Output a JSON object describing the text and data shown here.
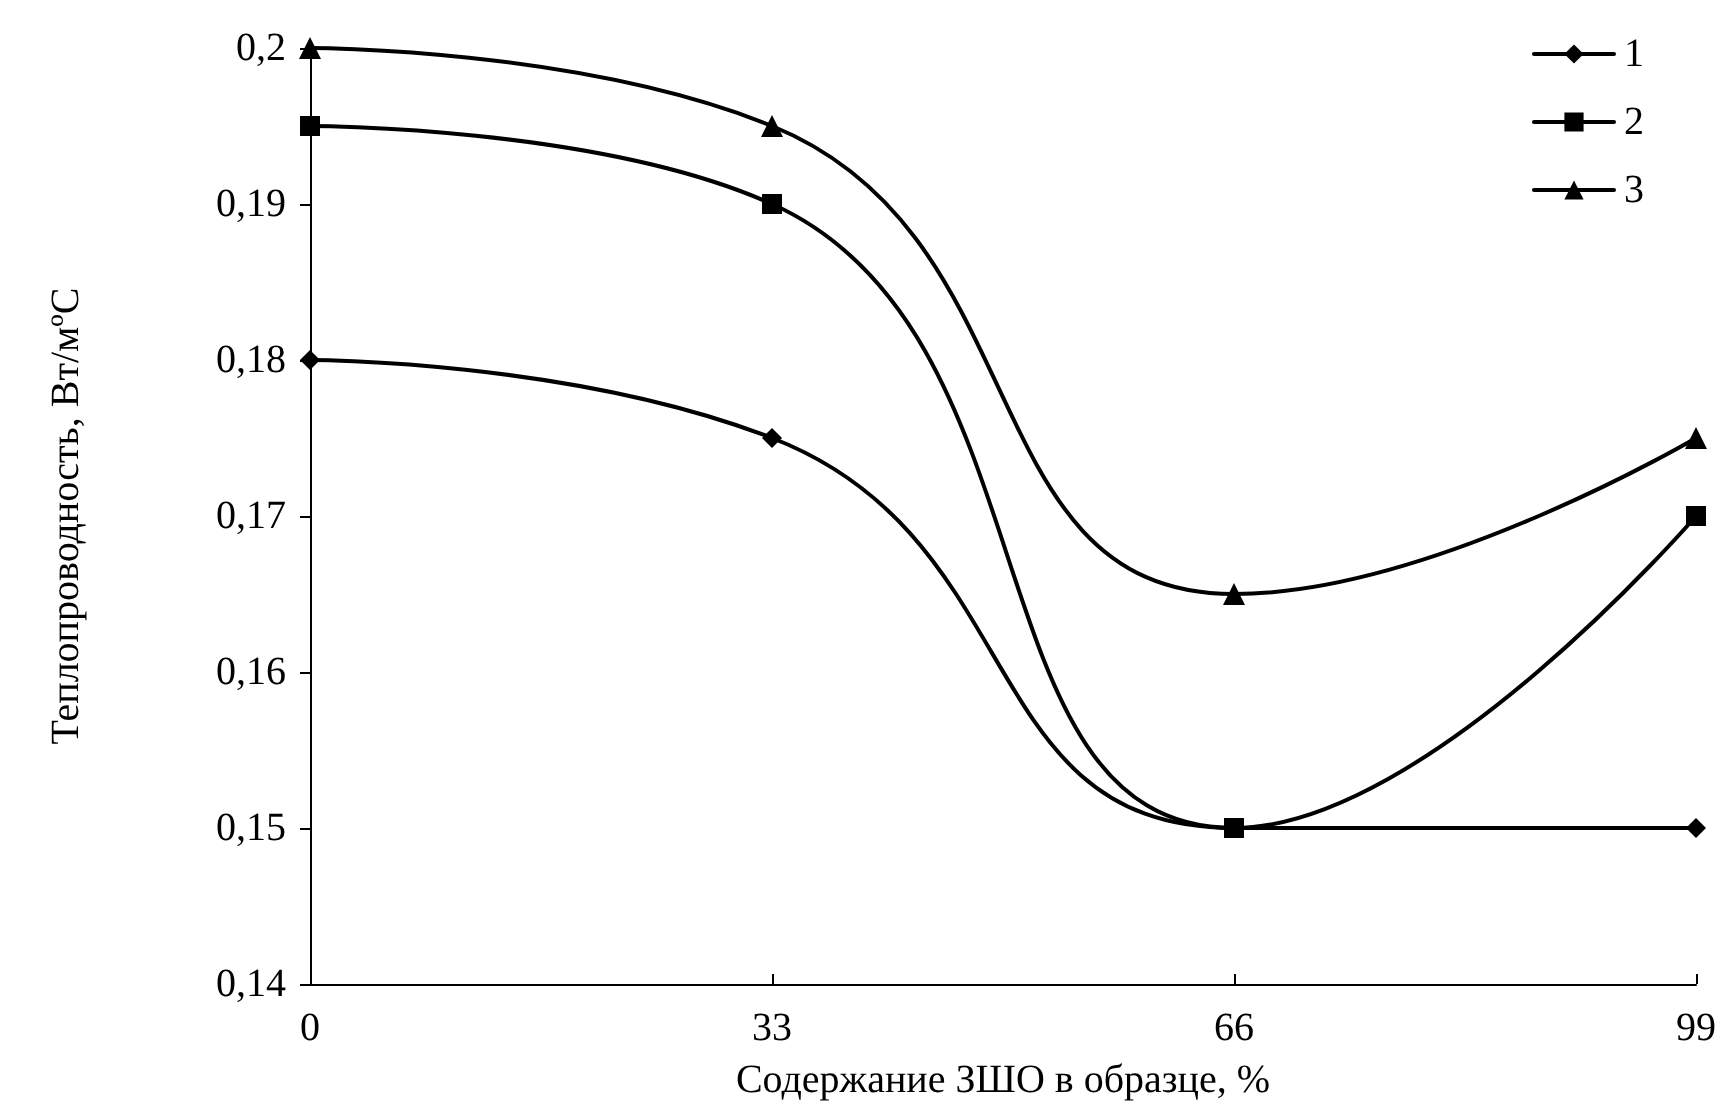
{
  "chart_data": {
    "type": "line",
    "xlabel": "Содержание ЗШО в образце, %",
    "ylabel": "Теплопроводность, Вт/мºС",
    "x": [
      0,
      33,
      66,
      99
    ],
    "series": [
      {
        "name": "1",
        "color": "#000000",
        "marker": "diamond",
        "values": [
          0.18,
          0.175,
          0.15,
          0.15
        ]
      },
      {
        "name": "2",
        "color": "#000000",
        "marker": "square",
        "values": [
          0.195,
          0.19,
          0.15,
          0.17
        ]
      },
      {
        "name": "3",
        "color": "#000000",
        "marker": "triangle",
        "values": [
          0.2,
          0.195,
          0.165,
          0.175
        ]
      }
    ],
    "xlim": [
      0,
      99
    ],
    "xticks": [
      0,
      33,
      66,
      99
    ],
    "ylim": [
      0.14,
      0.2
    ],
    "yticks": [
      {
        "value": 0.14,
        "label": "0,14"
      },
      {
        "value": 0.15,
        "label": "0,15"
      },
      {
        "value": 0.16,
        "label": "0,16"
      },
      {
        "value": 0.17,
        "label": "0,17"
      },
      {
        "value": 0.18,
        "label": "0,18"
      },
      {
        "value": 0.19,
        "label": "0,19"
      },
      {
        "value": 0.2,
        "label": "0,2"
      }
    ],
    "grid": false,
    "legend": "top right",
    "line_style": "solid"
  }
}
